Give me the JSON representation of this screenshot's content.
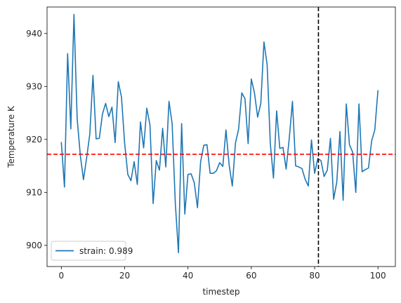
{
  "chart_data": {
    "type": "line",
    "xlabel": "timestep",
    "ylabel": "Temperature K",
    "xlim": [
      -4.5,
      105.5
    ],
    "ylim": [
      896,
      945
    ],
    "xticks": [
      0,
      20,
      40,
      60,
      80,
      100
    ],
    "yticks": [
      900,
      910,
      920,
      930,
      940
    ],
    "grid": false,
    "legend_position": "lower-left",
    "colors": {
      "series": "#1f77b4",
      "hline": "#ff0000",
      "vline": "#000000"
    },
    "series": [
      {
        "name": "strain: 0.989",
        "x": [
          0,
          1,
          2,
          3,
          4,
          5,
          6,
          7,
          8,
          9,
          10,
          11,
          12,
          13,
          14,
          15,
          16,
          17,
          18,
          19,
          20,
          21,
          22,
          23,
          24,
          25,
          26,
          27,
          28,
          29,
          30,
          31,
          32,
          33,
          34,
          35,
          36,
          37,
          38,
          39,
          40,
          41,
          42,
          43,
          44,
          45,
          46,
          47,
          48,
          49,
          50,
          51,
          52,
          53,
          54,
          55,
          56,
          57,
          58,
          59,
          60,
          61,
          62,
          63,
          64,
          65,
          66,
          67,
          68,
          69,
          70,
          71,
          72,
          73,
          74,
          75,
          76,
          77,
          78,
          79,
          80,
          81,
          82,
          83,
          84,
          85,
          86,
          87,
          88,
          89,
          90,
          91,
          92,
          93,
          94,
          95,
          96,
          97,
          98,
          99,
          100
        ],
        "y": [
          919.5,
          911.0,
          936.2,
          922.0,
          943.6,
          924.0,
          917.0,
          912.4,
          916.5,
          921.0,
          932.1,
          920.1,
          920.2,
          924.8,
          926.8,
          924.3,
          926.1,
          919.4,
          930.9,
          928.0,
          919.3,
          913.4,
          912.2,
          915.8,
          911.5,
          923.3,
          918.4,
          925.9,
          922.7,
          907.9,
          916.0,
          914.2,
          922.1,
          914.8,
          927.2,
          923.0,
          908.0,
          898.6,
          923.0,
          905.9,
          913.4,
          913.5,
          911.8,
          907.1,
          915.8,
          918.9,
          919.0,
          913.6,
          913.6,
          914.1,
          915.6,
          914.9,
          921.8,
          915.2,
          911.2,
          919.3,
          922.0,
          928.8,
          927.7,
          919.2,
          931.4,
          928.8,
          924.2,
          926.8,
          938.4,
          934.1,
          919.2,
          912.7,
          925.4,
          918.3,
          918.5,
          914.4,
          920.3,
          927.2,
          915.0,
          914.8,
          914.5,
          912.5,
          911.2,
          919.9,
          913.6,
          916.4,
          916.0,
          913.0,
          914.2,
          920.2,
          908.7,
          912.0,
          921.5,
          908.5,
          926.7,
          919.0,
          917.6,
          910.0,
          926.7,
          913.9,
          914.3,
          914.6,
          919.7,
          921.8,
          929.3
        ]
      }
    ],
    "reference_lines": [
      {
        "orientation": "horizontal",
        "value": 917.2,
        "style": "dashed",
        "color": "#ff0000"
      },
      {
        "orientation": "vertical",
        "value": 81.2,
        "style": "dashed",
        "color": "#000000"
      }
    ]
  }
}
